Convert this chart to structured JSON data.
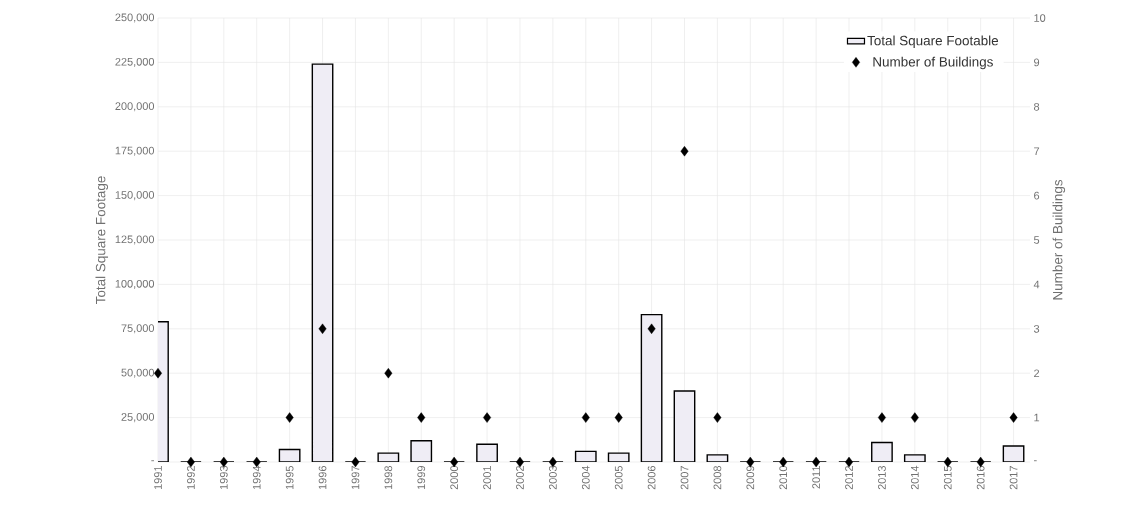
{
  "chart_data": {
    "type": "bar",
    "xlabel": null,
    "ylabel": "Total Square Footage",
    "y2label": "Number of Buildings",
    "categories": [
      "1991",
      "1992",
      "1993",
      "1994",
      "1995",
      "1996",
      "1997",
      "1998",
      "1999",
      "2000",
      "2001",
      "2002",
      "2003",
      "2004",
      "2005",
      "2006",
      "2007",
      "2008",
      "2009",
      "2010",
      "2011",
      "2012",
      "2013",
      "2014",
      "2015",
      "2016",
      "2017"
    ],
    "series": [
      {
        "name": "Total Square Footable",
        "color": "#efedf5",
        "values": [
          79000,
          0,
          0,
          0,
          7000,
          224000,
          0,
          5000,
          12000,
          0,
          10000,
          0,
          0,
          6000,
          5000,
          83000,
          40000,
          4000,
          0,
          0,
          0,
          0,
          11000,
          4000,
          0,
          0,
          9000
        ]
      },
      {
        "name": "Number of Buildings",
        "type": "scatter",
        "axis": "y2",
        "color": "#000000",
        "marker": "diamond",
        "values": [
          2,
          0,
          0,
          0,
          1,
          3,
          0,
          2,
          1,
          0,
          1,
          0,
          0,
          1,
          1,
          3,
          7,
          1,
          0,
          0,
          0,
          0,
          1,
          1,
          0,
          0,
          1
        ]
      }
    ],
    "ylim": [
      0,
      250000
    ],
    "yticks": [
      {
        "value": 0,
        "label": "-"
      },
      {
        "value": 25000,
        "label": "25,000"
      },
      {
        "value": 50000,
        "label": "50,000"
      },
      {
        "value": 75000,
        "label": "75,000"
      },
      {
        "value": 100000,
        "label": "100,000"
      },
      {
        "value": 125000,
        "label": "125,000"
      },
      {
        "value": 150000,
        "label": "150,000"
      },
      {
        "value": 175000,
        "label": "175,000"
      },
      {
        "value": 200000,
        "label": "200,000"
      },
      {
        "value": 225000,
        "label": "225,000"
      },
      {
        "value": 250000,
        "label": "250,000"
      }
    ],
    "y2lim": [
      0,
      10
    ],
    "y2ticks": [
      {
        "value": 0,
        "label": "-"
      },
      1,
      2,
      3,
      4,
      5,
      6,
      7,
      8,
      9,
      10
    ],
    "grid": true,
    "legend": "top right"
  }
}
